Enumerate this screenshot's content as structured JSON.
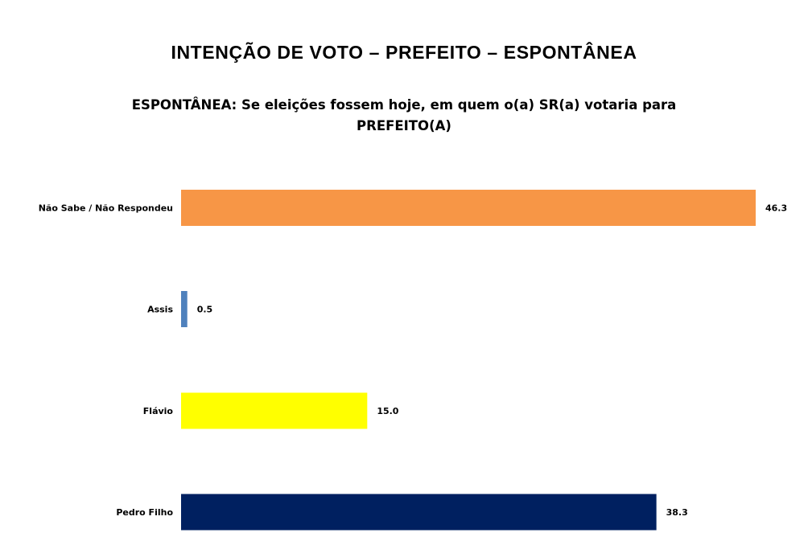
{
  "title": "INTENÇÃO DE VOTO – PREFEITO – ESPONTÂNEA",
  "subtitle_line1": "ESPONTÂNEA: Se eleições fossem hoje, em quem o(a) SR(a) votaria para",
  "subtitle_line2": "PREFEITO(A)",
  "chart_data": {
    "type": "bar",
    "orientation": "horizontal",
    "title": "INTENÇÃO DE VOTO – PREFEITO – ESPONTÂNEA",
    "subtitle": "ESPONTÂNEA: Se eleições fossem hoje, em quem o(a) SR(a) votaria para PREFEITO(A)",
    "categories": [
      "Não Sabe / Não Respondeu",
      "Assis",
      "Flávio",
      "Pedro Filho"
    ],
    "values": [
      46.3,
      0.5,
      15.0,
      38.3
    ],
    "value_labels": [
      "46.3",
      "0.5",
      "15.0",
      "38.3"
    ],
    "colors": [
      "#F79646",
      "#4F81BD",
      "#FFFF00",
      "#002060"
    ],
    "xlim": [
      0,
      46.3
    ],
    "grid": false,
    "legend": "none"
  }
}
